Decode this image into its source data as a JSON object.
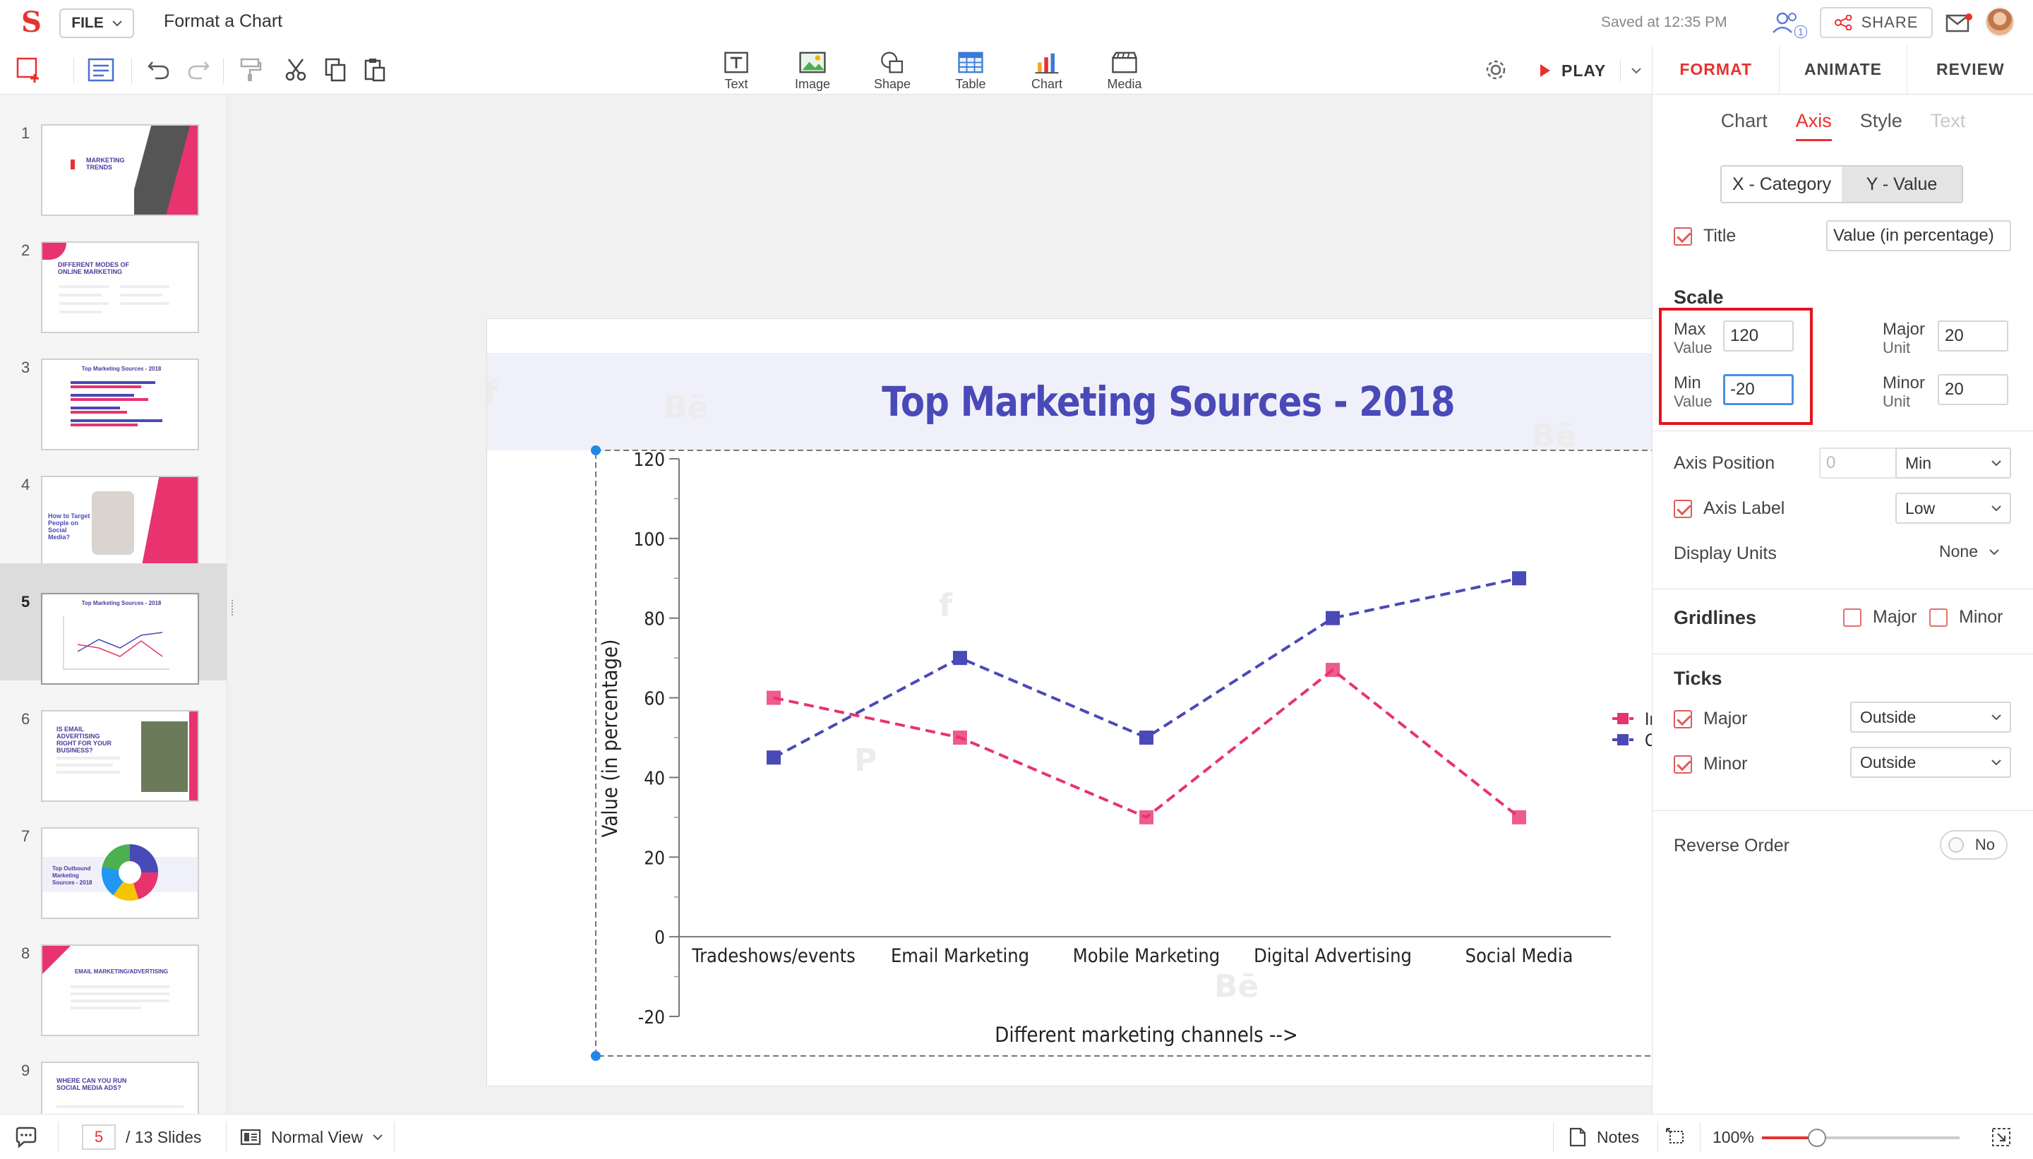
{
  "app": {
    "title": "Format a Chart",
    "file_label": "FILE",
    "saved_status": "Saved at 12:35 PM",
    "collaborator_count": "1",
    "share_label": "SHARE"
  },
  "toolbar": {
    "insert": [
      {
        "label": "Text",
        "icon": "text-box-icon"
      },
      {
        "label": "Image",
        "icon": "image-icon"
      },
      {
        "label": "Shape",
        "icon": "shape-icon"
      },
      {
        "label": "Table",
        "icon": "table-icon"
      },
      {
        "label": "Chart",
        "icon": "chart-icon"
      },
      {
        "label": "Media",
        "icon": "media-icon"
      }
    ],
    "play_label": "PLAY"
  },
  "right_panel": {
    "tabs": [
      "FORMAT",
      "ANIMATE",
      "REVIEW"
    ],
    "active_tab": "FORMAT",
    "sub_tabs": [
      "Chart",
      "Axis",
      "Style",
      "Text"
    ],
    "active_sub_tab": "Axis",
    "axis_toggle": [
      "X - Category",
      "Y - Value"
    ],
    "active_axis": "Y - Value",
    "title_label": "Title",
    "title_checked": true,
    "title_value": "Value (in percentage)",
    "scale": {
      "heading": "Scale",
      "max_label": "Max",
      "max_sub": "Value",
      "max_value": "120",
      "min_label": "Min",
      "min_sub": "Value",
      "min_value": "-20",
      "major_label": "Major",
      "major_sub": "Unit",
      "major_value": "20",
      "minor_label": "Minor",
      "minor_sub": "Unit",
      "minor_value": "20"
    },
    "axis_position_label": "Axis Position",
    "axis_position_value": "0",
    "axis_position_select": "Min",
    "axis_label_label": "Axis Label",
    "axis_label_checked": true,
    "axis_label_select": "Low",
    "display_units_label": "Display Units",
    "display_units_value": "None",
    "gridlines": {
      "heading": "Gridlines",
      "major": "Major",
      "minor": "Minor",
      "major_checked": false,
      "minor_checked": false
    },
    "ticks": {
      "heading": "Ticks",
      "major": "Major",
      "major_value": "Outside",
      "minor": "Minor",
      "minor_value": "Outside"
    },
    "reverse_order_label": "Reverse Order",
    "reverse_order_value": "No"
  },
  "slides": {
    "current": "5",
    "total_label": "/ 13 Slides",
    "thumbnails": [
      {
        "num": "1",
        "caption": "MARKETING TRENDS"
      },
      {
        "num": "2",
        "caption": "DIFFERENT MODES OF ONLINE MARKETING"
      },
      {
        "num": "3",
        "caption": "Top Marketing Sources - 2018"
      },
      {
        "num": "4",
        "caption": "How to Target People on Social Media?"
      },
      {
        "num": "5",
        "caption": "Top Marketing Sources - 2018"
      },
      {
        "num": "6",
        "caption": "IS EMAIL ADVERTISING RIGHT FOR YOUR BUSINESS?"
      },
      {
        "num": "7",
        "caption": "Top Outbound Marketing Sources - 2018"
      },
      {
        "num": "8",
        "caption": "EMAIL MARKETING/ADVERTISING"
      },
      {
        "num": "9",
        "caption": "WHERE CAN YOU RUN SOCIAL MEDIA ADS?"
      }
    ]
  },
  "slide": {
    "title": "Top Marketing Sources - 2018"
  },
  "chart_data": {
    "type": "line",
    "categories": [
      "Tradeshows/events",
      "Email Marketing",
      "Mobile Marketing",
      "Digital Advertising",
      "Social Media"
    ],
    "series": [
      {
        "name": "Inbound",
        "values": [
          60,
          50,
          30,
          67,
          30
        ],
        "color": "#e8336f"
      },
      {
        "name": "Outbound",
        "values": [
          45,
          70,
          50,
          80,
          90
        ],
        "color": "#4a49b8"
      }
    ],
    "xlabel": "Different marketing channels -->",
    "ylabel": "Value (in percentage)",
    "ylim": [
      -20,
      120
    ],
    "yticks": [
      "120",
      "100",
      "80",
      "60",
      "40",
      "20",
      "0",
      "-20"
    ],
    "grid": false,
    "legend": "right",
    "line_style": "dashed",
    "marker": "square"
  },
  "statusbar": {
    "view_label": "Normal View",
    "notes_label": "Notes",
    "zoom_label": "100%",
    "zoom_fraction": 0.28
  },
  "colors": {
    "accent": "#e8312f",
    "title_blue": "#4a49b8",
    "inbound": "#e8336f",
    "outbound": "#4a49b8",
    "selection_blue": "#1e88e5"
  }
}
